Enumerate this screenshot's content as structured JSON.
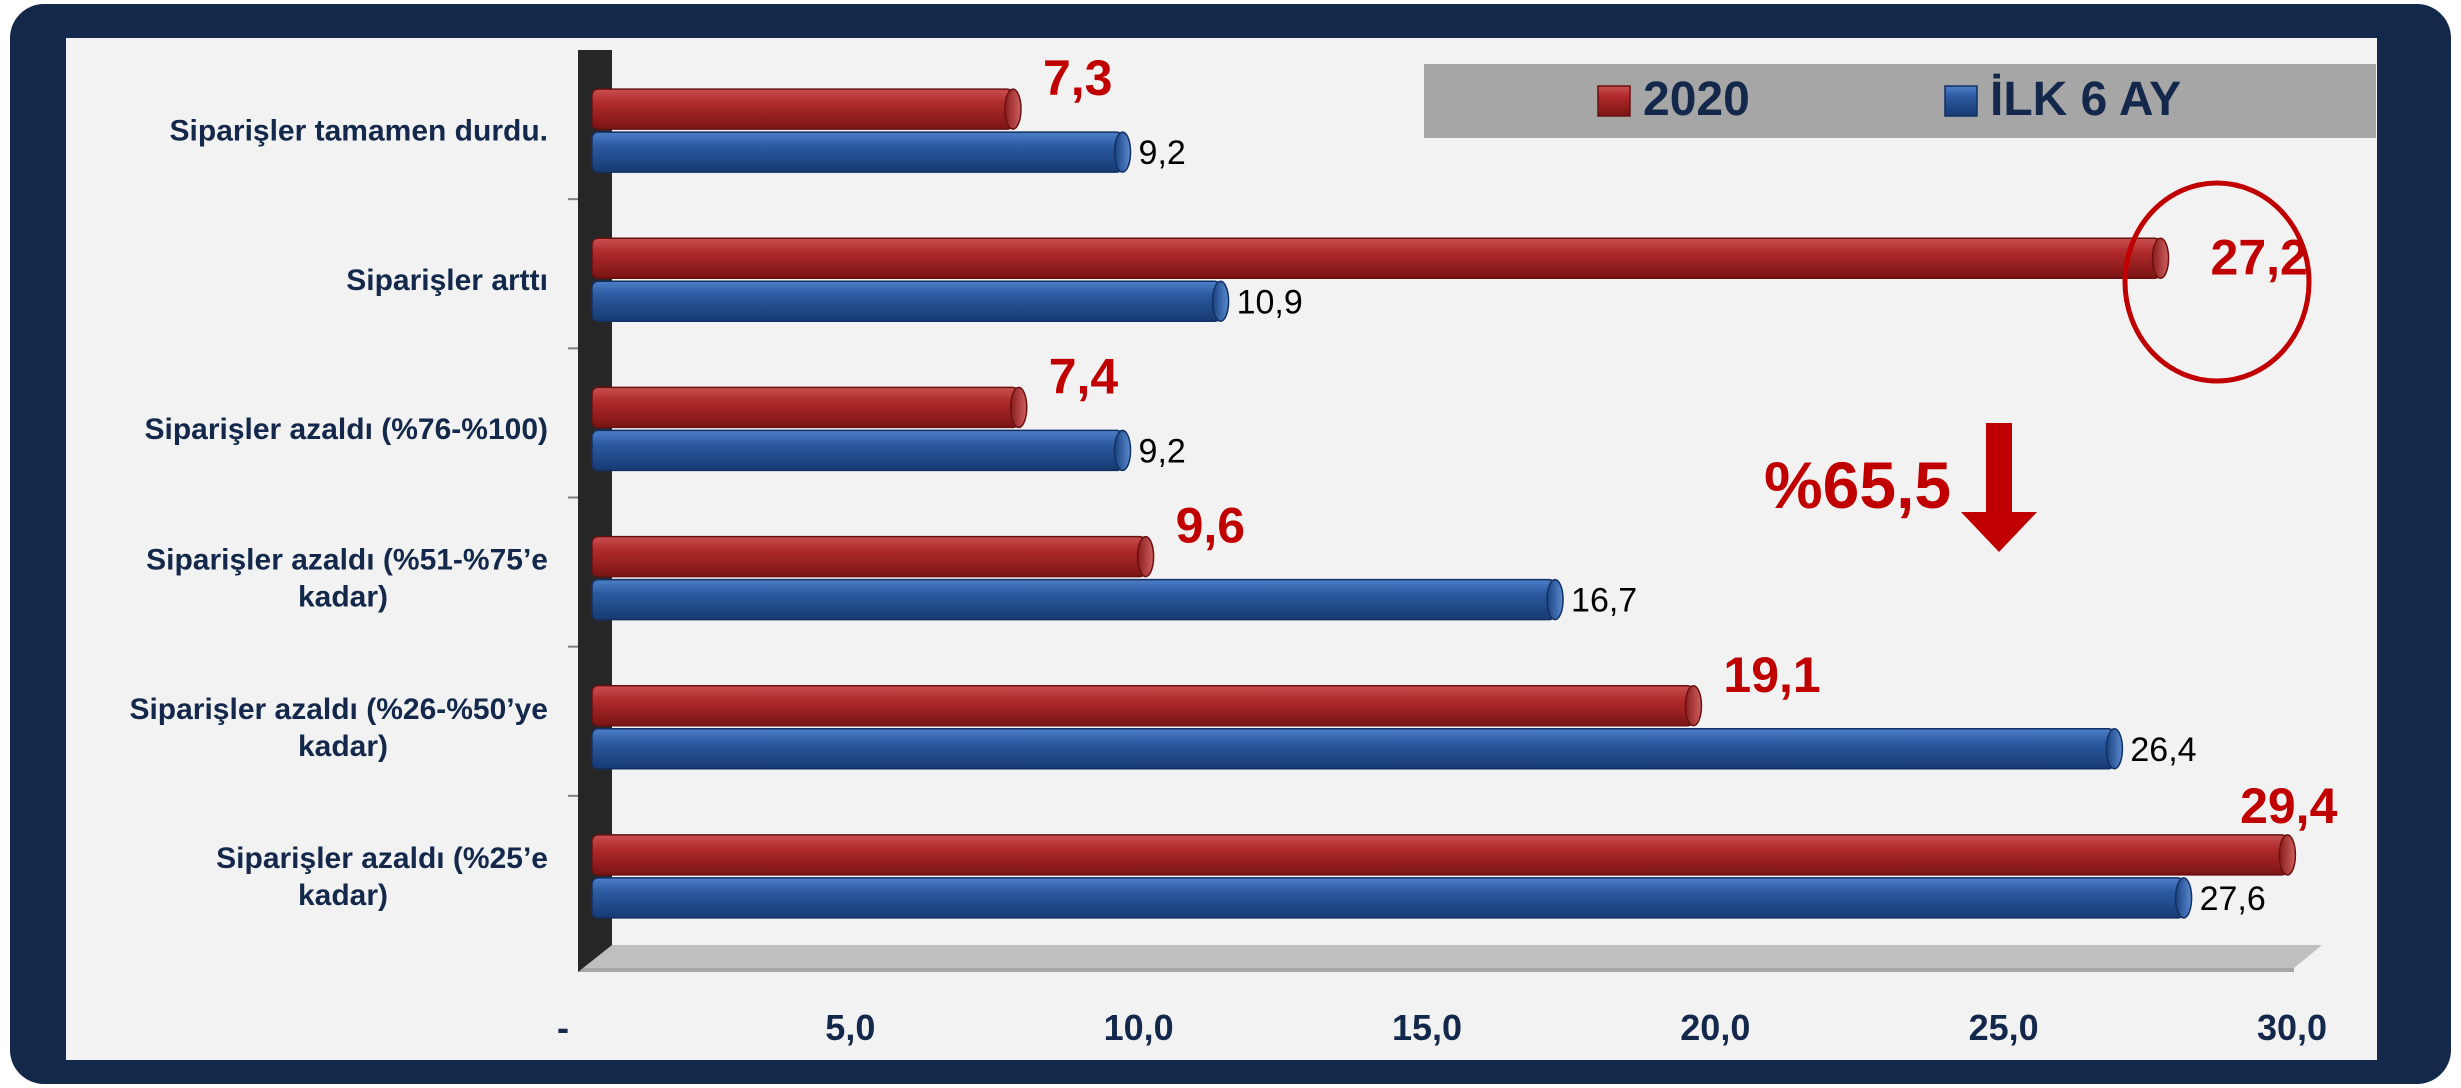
{
  "chart_data": {
    "type": "bar",
    "orientation": "horizontal",
    "categories": [
      "Siparişler tamamen durdu.",
      "Siparişler arttı",
      "Siparişler azaldı (%76-%100)",
      "Siparişler azaldı (%51-%75’e kadar)",
      "Siparişler azaldı (%26-%50’ye kadar)",
      "Siparişler azaldı (%25’e kadar)"
    ],
    "series": [
      {
        "name": "2020",
        "values": [
          7.3,
          27.2,
          7.4,
          9.6,
          19.1,
          29.4
        ],
        "labels": [
          "7,3",
          "27,2",
          "7,4",
          "9,6",
          "19,1",
          "29,4"
        ]
      },
      {
        "name": "İLK 6 AY",
        "values": [
          9.2,
          10.9,
          9.2,
          16.7,
          26.4,
          27.6
        ],
        "labels": [
          "9,2",
          "10,9",
          "9,2",
          "16,7",
          "26,4",
          "27,6"
        ]
      }
    ],
    "xlim": [
      0,
      30
    ],
    "xticks": [
      "-",
      "5,0",
      "10,0",
      "15,0",
      "20,0",
      "25,0",
      "30,0"
    ],
    "legend_position": "top-right",
    "grid": false,
    "annotations": {
      "callout": "%65,5"
    },
    "colors": {
      "series_2020": "#b22c2c",
      "series_ilk6": "#2c5aa0",
      "label_2020": "#c00000",
      "label_ilk6": "#000000",
      "axis_text": "#13284a"
    }
  }
}
